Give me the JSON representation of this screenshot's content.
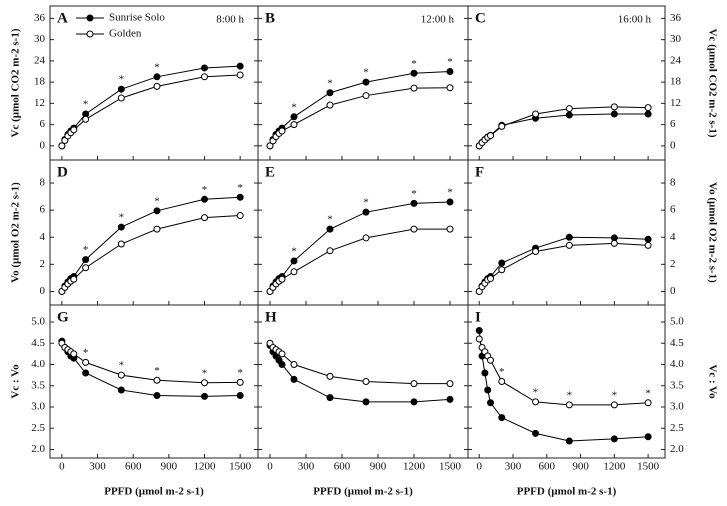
{
  "chart_data": [
    {
      "type": "line",
      "title": "A",
      "note": "8:00 h",
      "legend": "upper left",
      "y_label": "Vc (µmol CO2 m-2 s-1)",
      "x": [
        0,
        25,
        50,
        75,
        100,
        200,
        500,
        800,
        1200,
        1500
      ],
      "series": [
        {
          "name": "Sunrise Solo",
          "color": "#000000",
          "marker": "filled",
          "values": [
            0,
            1.8,
            3.2,
            4.2,
            5,
            9,
            16,
            19.5,
            22,
            22.5
          ]
        },
        {
          "name": "Golden",
          "color": "#000000",
          "marker": "open",
          "values": [
            0,
            1.5,
            2.8,
            3.7,
            4.5,
            7.5,
            13.5,
            16.8,
            19.5,
            20
          ]
        }
      ],
      "significance": [
        200,
        500,
        800
      ],
      "significance_label": "*",
      "xlim": [
        -100,
        1650
      ],
      "xticks": [
        0,
        300,
        600,
        900,
        1200,
        1500
      ],
      "ylim": [
        -4,
        39.5
      ],
      "yticks": [
        0,
        6,
        12,
        18,
        24,
        30,
        36
      ]
    },
    {
      "type": "line",
      "title": "B",
      "note": "12:00 h",
      "x": [
        0,
        25,
        50,
        75,
        100,
        200,
        500,
        800,
        1200,
        1500
      ],
      "series": [
        {
          "name": "Sunrise Solo",
          "color": "#000000",
          "marker": "filled",
          "values": [
            0,
            1.8,
            3.2,
            4.2,
            5,
            8.2,
            15,
            18,
            20.5,
            21
          ]
        },
        {
          "name": "Golden",
          "color": "#000000",
          "marker": "open",
          "values": [
            0,
            1.4,
            2.6,
            3.5,
            4.2,
            6,
            11.5,
            14.2,
            16.3,
            16.4
          ]
        }
      ],
      "significance": [
        200,
        500,
        800,
        1200,
        1500
      ],
      "significance_label": "*",
      "xlim": [
        -100,
        1650
      ],
      "xticks": [
        0,
        300,
        600,
        900,
        1200,
        1500
      ],
      "ylim": [
        -4,
        39.5
      ],
      "yticks": [
        0,
        6,
        12,
        18,
        24,
        30,
        36
      ]
    },
    {
      "type": "line",
      "title": "C",
      "note": "16:00 h",
      "y_label": "Vc (µmol CO2 m-2 s-1)",
      "x": [
        0,
        25,
        50,
        75,
        100,
        200,
        500,
        800,
        1200,
        1500
      ],
      "series": [
        {
          "name": "Sunrise Solo",
          "color": "#000000",
          "marker": "filled",
          "values": [
            0,
            1,
            1.8,
            2.5,
            3,
            5.8,
            7.8,
            8.7,
            9,
            9
          ]
        },
        {
          "name": "Golden",
          "color": "#000000",
          "marker": "open",
          "values": [
            0,
            0.9,
            1.7,
            2.4,
            2.9,
            5.5,
            9,
            10.5,
            11,
            10.8
          ]
        }
      ],
      "xlim": [
        -100,
        1650
      ],
      "xticks": [
        0,
        300,
        600,
        900,
        1200,
        1500
      ],
      "ylim": [
        -4,
        39.5
      ],
      "yticks": [
        0,
        6,
        12,
        18,
        24,
        30,
        36
      ]
    },
    {
      "type": "line",
      "title": "D",
      "y_label": "Vo (µmol O2 m-2 s-1)",
      "x": [
        0,
        25,
        50,
        75,
        100,
        200,
        500,
        800,
        1200,
        1500
      ],
      "series": [
        {
          "name": "Sunrise Solo",
          "color": "#000000",
          "marker": "filled",
          "values": [
            0,
            0.4,
            0.7,
            0.95,
            1.1,
            2.35,
            4.75,
            5.95,
            6.8,
            6.95
          ]
        },
        {
          "name": "Golden",
          "color": "#000000",
          "marker": "open",
          "values": [
            0,
            0.3,
            0.55,
            0.75,
            0.9,
            1.75,
            3.5,
            4.6,
            5.45,
            5.6
          ]
        }
      ],
      "significance": [
        200,
        500,
        800,
        1200,
        1500
      ],
      "significance_label": "*",
      "xlim": [
        -100,
        1650
      ],
      "xticks": [
        0,
        300,
        600,
        900,
        1200,
        1500
      ],
      "ylim": [
        -1,
        9.7
      ],
      "yticks": [
        0,
        2,
        4,
        6,
        8
      ]
    },
    {
      "type": "line",
      "title": "E",
      "x": [
        0,
        25,
        50,
        75,
        100,
        200,
        500,
        800,
        1200,
        1500
      ],
      "series": [
        {
          "name": "Sunrise Solo",
          "color": "#000000",
          "marker": "filled",
          "values": [
            0,
            0.4,
            0.7,
            0.95,
            1.1,
            2.25,
            4.6,
            5.85,
            6.5,
            6.6
          ]
        },
        {
          "name": "Golden",
          "color": "#000000",
          "marker": "open",
          "values": [
            0,
            0.3,
            0.55,
            0.75,
            0.9,
            1.45,
            3.0,
            3.95,
            4.6,
            4.6
          ]
        }
      ],
      "significance": [
        200,
        500,
        800,
        1200,
        1500
      ],
      "significance_label": "*",
      "xlim": [
        -100,
        1650
      ],
      "xticks": [
        0,
        300,
        600,
        900,
        1200,
        1500
      ],
      "ylim": [
        -1,
        9.7
      ],
      "yticks": [
        0,
        2,
        4,
        6,
        8
      ]
    },
    {
      "type": "line",
      "title": "F",
      "y_label": "Vo (µmol O2 m-2 s-1)",
      "x": [
        0,
        25,
        50,
        75,
        100,
        200,
        500,
        800,
        1200,
        1500
      ],
      "series": [
        {
          "name": "Sunrise Solo",
          "color": "#000000",
          "marker": "filled",
          "values": [
            0,
            0.4,
            0.7,
            0.95,
            1.1,
            2.1,
            3.2,
            4.0,
            3.95,
            3.85
          ]
        },
        {
          "name": "Golden",
          "color": "#000000",
          "marker": "open",
          "values": [
            0,
            0.35,
            0.6,
            0.85,
            0.95,
            1.6,
            2.95,
            3.4,
            3.55,
            3.4
          ]
        }
      ],
      "xlim": [
        -100,
        1650
      ],
      "xticks": [
        0,
        300,
        600,
        900,
        1200,
        1500
      ],
      "ylim": [
        -1,
        9.7
      ],
      "yticks": [
        0,
        2,
        4,
        6,
        8
      ]
    },
    {
      "type": "line",
      "title": "G",
      "y_label": "Vc : Vo",
      "x_label": "PPFD (µmol m-2 s-1)",
      "x": [
        0,
        25,
        50,
        75,
        100,
        200,
        500,
        800,
        1200,
        1500
      ],
      "series": [
        {
          "name": "Sunrise Solo",
          "color": "#000000",
          "marker": "filled",
          "values": [
            4.55,
            4.4,
            4.3,
            4.2,
            4.15,
            3.8,
            3.4,
            3.27,
            3.25,
            3.27
          ]
        },
        {
          "name": "Golden",
          "color": "#000000",
          "marker": "open",
          "values": [
            4.5,
            4.4,
            4.35,
            4.3,
            4.25,
            4.05,
            3.75,
            3.63,
            3.57,
            3.58
          ]
        }
      ],
      "significance": [
        200,
        500,
        800,
        1200,
        1500
      ],
      "significance_label": "*",
      "xlim": [
        -100,
        1650
      ],
      "xticks": [
        0,
        300,
        600,
        900,
        1200,
        1500
      ],
      "ylim": [
        1.8,
        5.4
      ],
      "yticks": [
        {
          "value": 2,
          "label": "2.0"
        },
        2.5,
        {
          "value": 3,
          "label": "3.0"
        },
        3.5,
        {
          "value": 4,
          "label": "4.0"
        },
        4.5,
        {
          "value": 5,
          "label": "5.0"
        }
      ]
    },
    {
      "type": "line",
      "title": "H",
      "x_label": "PPFD (µmol m-2 s-1)",
      "x": [
        0,
        25,
        50,
        75,
        100,
        200,
        500,
        800,
        1200,
        1500
      ],
      "series": [
        {
          "name": "Sunrise Solo",
          "color": "#000000",
          "marker": "filled",
          "values": [
            4.45,
            4.3,
            4.2,
            4.1,
            4.0,
            3.65,
            3.22,
            3.12,
            3.12,
            3.18
          ]
        },
        {
          "name": "Golden",
          "color": "#000000",
          "marker": "open",
          "values": [
            4.5,
            4.4,
            4.35,
            4.3,
            4.25,
            4.0,
            3.72,
            3.6,
            3.55,
            3.55
          ]
        }
      ],
      "xlim": [
        -100,
        1650
      ],
      "xticks": [
        0,
        300,
        600,
        900,
        1200,
        1500
      ],
      "ylim": [
        1.8,
        5.4
      ],
      "yticks": [
        {
          "value": 2,
          "label": "2.0"
        },
        2.5,
        {
          "value": 3,
          "label": "3.0"
        },
        3.5,
        {
          "value": 4,
          "label": "4.0"
        },
        4.5,
        {
          "value": 5,
          "label": "5.0"
        }
      ]
    },
    {
      "type": "line",
      "title": "I",
      "y_label": "Vc : Vo",
      "x_label": "PPFD (µmol m-2 s-1)",
      "x": [
        0,
        25,
        50,
        75,
        100,
        200,
        500,
        800,
        1200,
        1500
      ],
      "series": [
        {
          "name": "Sunrise Solo",
          "color": "#000000",
          "marker": "filled",
          "values": [
            4.8,
            4.2,
            3.8,
            3.4,
            3.1,
            2.75,
            2.38,
            2.2,
            2.25,
            2.3
          ]
        },
        {
          "name": "Golden",
          "color": "#000000",
          "marker": "open",
          "values": [
            4.6,
            4.4,
            4.3,
            4.2,
            4.1,
            3.6,
            3.12,
            3.05,
            3.05,
            3.1
          ]
        }
      ],
      "significance": [
        200,
        500,
        800,
        1200,
        1500
      ],
      "significance_label": "*",
      "xlim": [
        -100,
        1650
      ],
      "xticks": [
        0,
        300,
        600,
        900,
        1200,
        1500
      ],
      "ylim": [
        1.8,
        5.4
      ],
      "yticks": [
        {
          "value": 2,
          "label": "2.0"
        },
        2.5,
        {
          "value": 3,
          "label": "3.0"
        },
        3.5,
        {
          "value": 4,
          "label": "4.0"
        },
        4.5,
        {
          "value": 5,
          "label": "5.0"
        }
      ]
    }
  ]
}
